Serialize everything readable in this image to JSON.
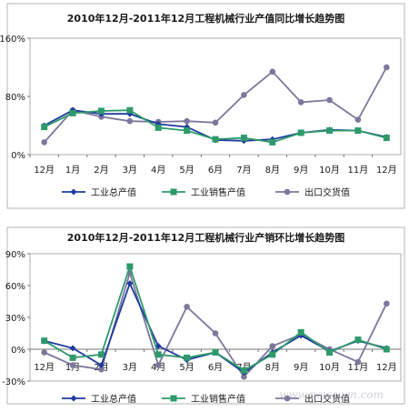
{
  "chart_data": [
    {
      "type": "line",
      "title": "2010年12月-2011年12月工程机械行业产值同比增长趋势图",
      "categories": [
        "12月",
        "1月",
        "2月",
        "3月",
        "4月",
        "5月",
        "6月",
        "7月",
        "8月",
        "9月",
        "10月",
        "11月",
        "12月"
      ],
      "ylim": [
        0,
        160
      ],
      "yticks": [
        "0%",
        "80%",
        "160%"
      ],
      "ytick_values": [
        0,
        80,
        160
      ],
      "grid": false,
      "legend_position": "bottom",
      "series": [
        {
          "name": "工业总产值",
          "color": "#1f3aa0",
          "marker": "diamond",
          "values": [
            40,
            61,
            56,
            56,
            42,
            38,
            20,
            19,
            21,
            30,
            34,
            33,
            24
          ]
        },
        {
          "name": "工业销售产值",
          "color": "#2e9a6b",
          "marker": "square",
          "values": [
            38,
            57,
            60,
            61,
            37,
            33,
            21,
            23,
            17,
            30,
            33,
            33,
            23
          ]
        },
        {
          "name": "出口交货值",
          "color": "#7b789c",
          "marker": "circle",
          "values": [
            17,
            61,
            52,
            46,
            45,
            46,
            44,
            82,
            114,
            72,
            75,
            48,
            120
          ]
        }
      ]
    },
    {
      "type": "line",
      "title": "2010年12月-2011年12月工程机械行业产销环比增长趋势图",
      "categories": [
        "12月",
        "1月",
        "2月",
        "3月",
        "4月",
        "5月",
        "6月",
        "7月",
        "8月",
        "9月",
        "10月",
        "11月",
        "12月"
      ],
      "ylim": [
        -30,
        90
      ],
      "yticks": [
        "-30%",
        "0%",
        "30%",
        "60%",
        "90%"
      ],
      "ytick_values": [
        -30,
        0,
        30,
        60,
        90
      ],
      "grid": false,
      "legend_position": "bottom",
      "series": [
        {
          "name": "工业总产值",
          "color": "#1f3aa0",
          "marker": "diamond",
          "values": [
            8,
            1,
            -15,
            62,
            3,
            -10,
            -3,
            -22,
            -3,
            13,
            -2,
            8,
            1
          ]
        },
        {
          "name": "工业销售产值",
          "color": "#2e9a6b",
          "marker": "square",
          "values": [
            8,
            -8,
            -5,
            78,
            -5,
            -8,
            -3,
            -20,
            -5,
            16,
            -3,
            9,
            0
          ]
        },
        {
          "name": "出口交货值",
          "color": "#7b789c",
          "marker": "circle",
          "values": [
            -3,
            -15,
            -19,
            72,
            -15,
            40,
            15,
            -26,
            3,
            14,
            0,
            -12,
            43
          ]
        }
      ]
    }
  ],
  "watermark": "www.newsccn.com"
}
